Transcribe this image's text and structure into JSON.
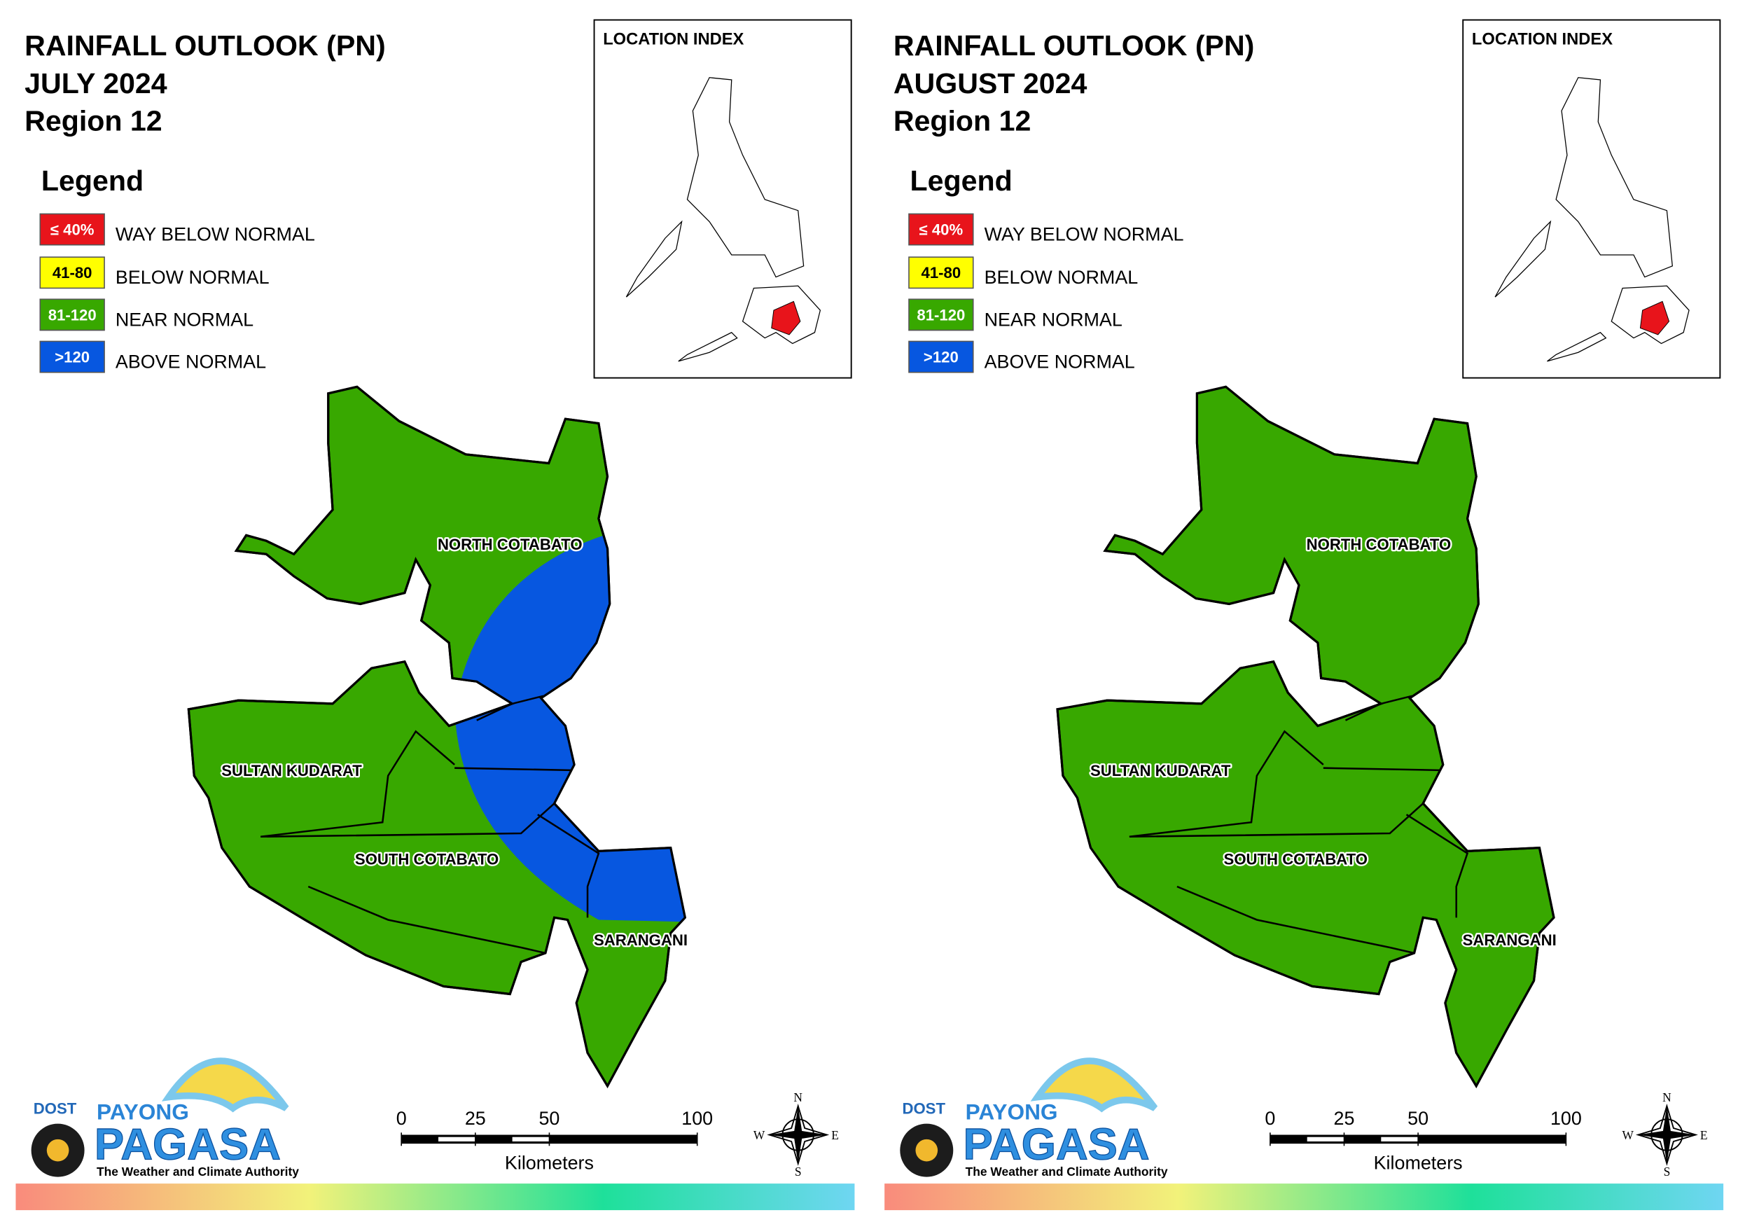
{
  "panels": [
    {
      "title": [
        "RAINFALL OUTLOOK (PN)",
        "JULY 2024",
        "Region 12"
      ],
      "legend": {
        "title": "Legend",
        "items": [
          {
            "swatch": "≤ 40%",
            "label": "WAY BELOW NORMAL",
            "color": "#e8141b"
          },
          {
            "swatch": "41-80",
            "label": "BELOW NORMAL",
            "color": "#ffff00"
          },
          {
            "swatch": "81-120",
            "label": "NEAR NORMAL",
            "color": "#38a800"
          },
          {
            "swatch": ">120",
            "label": "ABOVE NORMAL",
            "color": "#0757e0"
          }
        ]
      },
      "location_index": "LOCATION INDEX",
      "provinces": [
        "NORTH COTABATO",
        "SULTAN KUDARAT",
        "SOUTH COTABATO",
        "SARANGANI"
      ],
      "scale": {
        "ticks": [
          0,
          25,
          50,
          100
        ],
        "unit": "Kilometers"
      },
      "compass": [
        "N",
        "E",
        "S",
        "W"
      ],
      "logo": {
        "agency": "DOST",
        "brand_top": "PAYONG",
        "brand": "PAGASA",
        "tagline": "The Weather and Climate Authority"
      }
    },
    {
      "title": [
        "RAINFALL OUTLOOK (PN)",
        "AUGUST 2024",
        "Region 12"
      ],
      "legend": {
        "title": "Legend",
        "items": [
          {
            "swatch": "≤ 40%",
            "label": "WAY BELOW NORMAL",
            "color": "#e8141b"
          },
          {
            "swatch": "41-80",
            "label": "BELOW NORMAL",
            "color": "#ffff00"
          },
          {
            "swatch": "81-120",
            "label": "NEAR NORMAL",
            "color": "#38a800"
          },
          {
            "swatch": ">120",
            "label": "ABOVE NORMAL",
            "color": "#0757e0"
          }
        ]
      },
      "location_index": "LOCATION INDEX",
      "provinces": [
        "NORTH COTABATO",
        "SULTAN KUDARAT",
        "SOUTH COTABATO",
        "SARANGANI"
      ],
      "scale": {
        "ticks": [
          0,
          25,
          50,
          100
        ],
        "unit": "Kilometers"
      },
      "compass": [
        "N",
        "E",
        "S",
        "W"
      ],
      "logo": {
        "agency": "DOST",
        "brand_top": "PAYONG",
        "brand": "PAGASA",
        "tagline": "The Weather and Climate Authority"
      }
    }
  ]
}
